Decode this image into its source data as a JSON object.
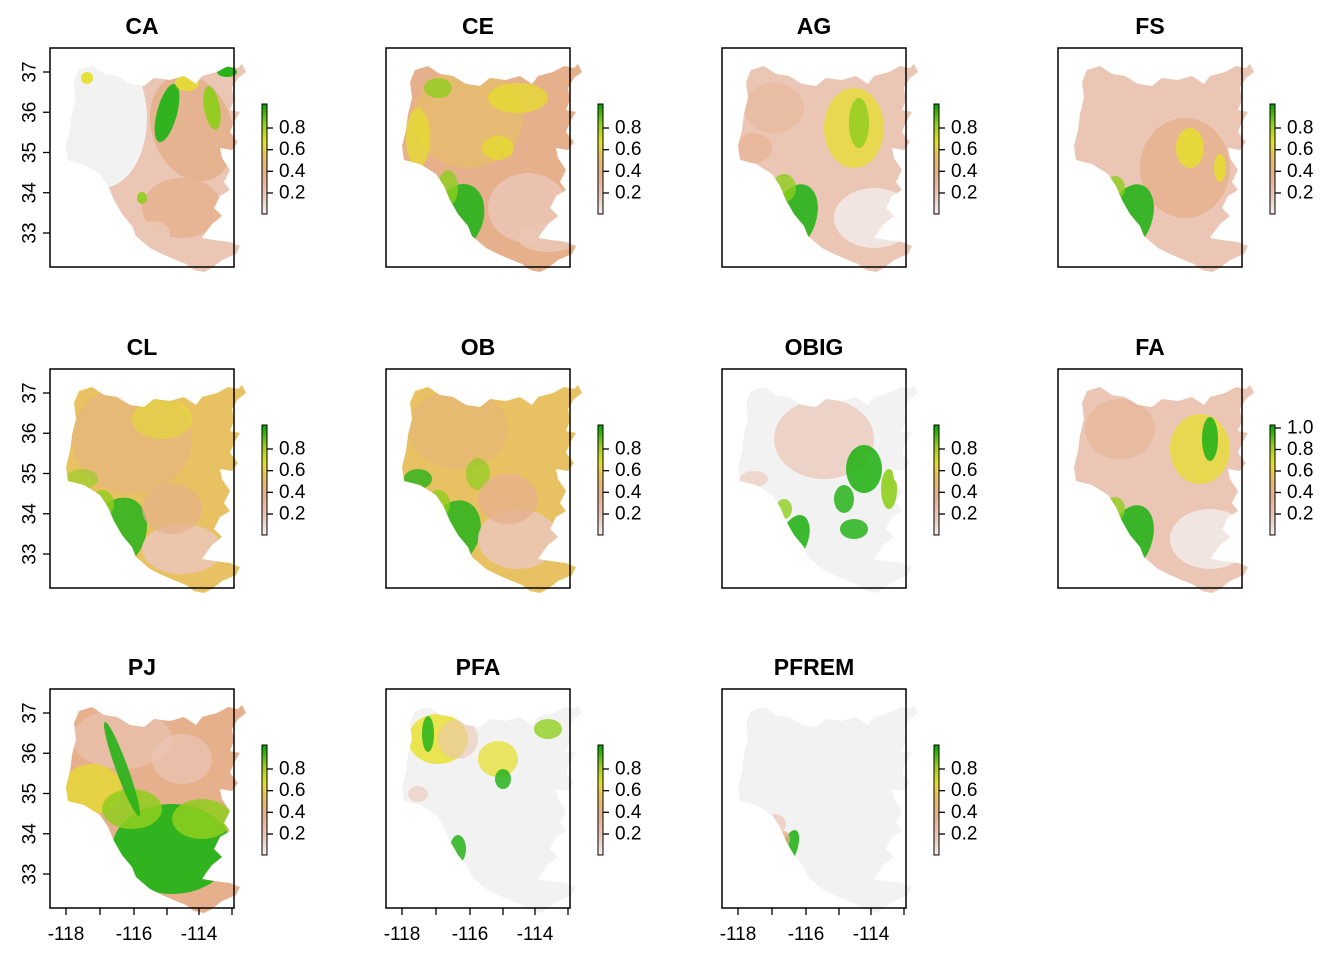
{
  "panels": [
    {
      "id": "ca",
      "title": "CA",
      "legend_ticks": [
        "0.2",
        "0.4",
        "0.6",
        "0.8"
      ],
      "pattern": "ca"
    },
    {
      "id": "ce",
      "title": "CE",
      "legend_ticks": [
        "0.2",
        "0.4",
        "0.6",
        "0.8"
      ],
      "pattern": "ce"
    },
    {
      "id": "ag",
      "title": "AG",
      "legend_ticks": [
        "0.2",
        "0.4",
        "0.6",
        "0.8"
      ],
      "pattern": "ag"
    },
    {
      "id": "fs",
      "title": "FS",
      "legend_ticks": [
        "0.2",
        "0.4",
        "0.6",
        "0.8"
      ],
      "pattern": "fs"
    },
    {
      "id": "cl",
      "title": "CL",
      "legend_ticks": [
        "0.2",
        "0.4",
        "0.6",
        "0.8"
      ],
      "pattern": "cl"
    },
    {
      "id": "ob",
      "title": "OB",
      "legend_ticks": [
        "0.2",
        "0.4",
        "0.6",
        "0.8"
      ],
      "pattern": "ob"
    },
    {
      "id": "obig",
      "title": "OBIG",
      "legend_ticks": [
        "0.2",
        "0.4",
        "0.6",
        "0.8"
      ],
      "pattern": "obig"
    },
    {
      "id": "fa",
      "title": "FA",
      "legend_ticks": [
        "0.2",
        "0.4",
        "0.6",
        "0.8",
        "1.0"
      ],
      "pattern": "fa"
    },
    {
      "id": "pj",
      "title": "PJ",
      "legend_ticks": [
        "0.2",
        "0.4",
        "0.6",
        "0.8"
      ],
      "pattern": "pj"
    },
    {
      "id": "pfa",
      "title": "PFA",
      "legend_ticks": [
        "0.2",
        "0.4",
        "0.6",
        "0.8"
      ],
      "pattern": "pfa"
    },
    {
      "id": "pfrem",
      "title": "PFREM",
      "legend_ticks": [
        "0.2",
        "0.4",
        "0.6",
        "0.8"
      ],
      "pattern": "pfrem"
    }
  ],
  "axes": {
    "y_tick_labels": [
      "33",
      "34",
      "35",
      "36",
      "37"
    ],
    "x_tick_labels": [
      "-118",
      "-116",
      "-114"
    ]
  },
  "colors": {
    "ramp": [
      "#f2f2f2",
      "#ebc6b5",
      "#e6b08c",
      "#e8c262",
      "#e6e025",
      "#8fce1e",
      "#27b31a",
      "#06a100"
    ]
  }
}
